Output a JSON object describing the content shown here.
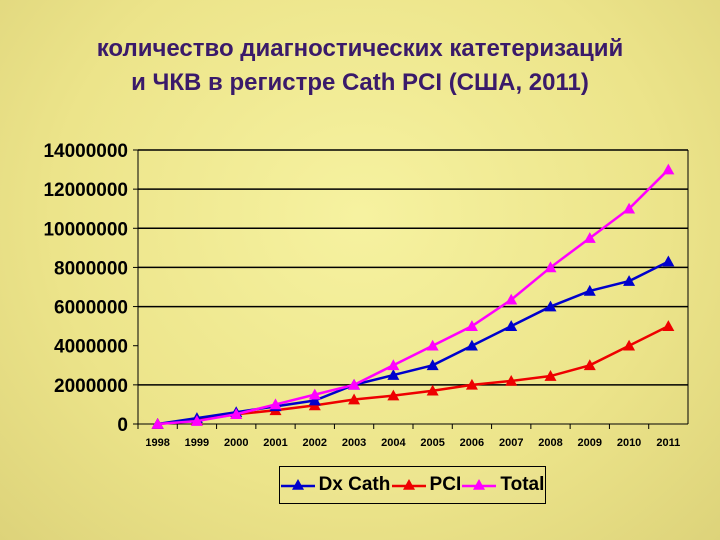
{
  "chart_data": {
    "type": "line",
    "title": "количество диагностических катетеризаций и ЧКВ в регистре Cath PCI (США, 2011)",
    "title_lines": [
      "количество диагностических катетеризаций",
      "и ЧКВ в регистре Cath PCI (США, 2011)"
    ],
    "xlabel": "",
    "ylabel": "",
    "categories": [
      "1998",
      "1999",
      "2000",
      "2001",
      "2002",
      "2003",
      "2004",
      "2005",
      "2006",
      "2007",
      "2008",
      "2009",
      "2010",
      "2011"
    ],
    "ylim": [
      0,
      14000000
    ],
    "yticks": [
      "0",
      "2000000",
      "4000000",
      "6000000",
      "8000000",
      "10000000",
      "12000000",
      "14000000"
    ],
    "grid": true,
    "legend_placement": "bottom",
    "series": [
      {
        "name": "Dx Cath",
        "color": "#0000cc",
        "values": [
          0,
          300000,
          600000,
          900000,
          1200000,
          2000000,
          2500000,
          3000000,
          4000000,
          5000000,
          6000000,
          6800000,
          7300000,
          8300000
        ]
      },
      {
        "name": "PCI",
        "color": "#ee0000",
        "values": [
          0,
          200000,
          500000,
          700000,
          950000,
          1250000,
          1450000,
          1700000,
          2000000,
          2200000,
          2450000,
          3000000,
          4000000,
          5000000
        ]
      },
      {
        "name": "Total",
        "color": "#ff00ff",
        "values": [
          0,
          150000,
          500000,
          1000000,
          1500000,
          2000000,
          3000000,
          4000000,
          5000000,
          6350000,
          8000000,
          9500000,
          11000000,
          13000000
        ]
      }
    ]
  }
}
